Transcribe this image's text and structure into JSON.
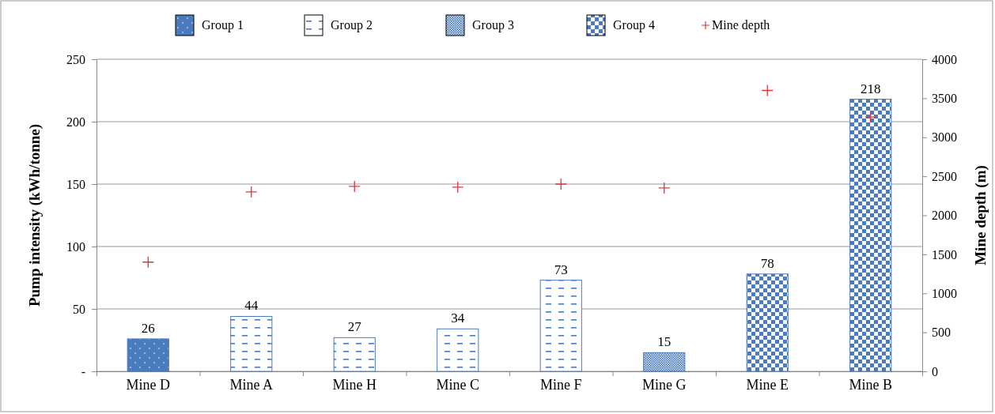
{
  "chart_data": {
    "type": "bar",
    "categories": [
      "Mine D",
      "Mine A",
      "Mine H",
      "Mine C",
      "Mine F",
      "Mine G",
      "Mine E",
      "Mine B"
    ],
    "ylabel": "Pump intensity (kWh/tonne)",
    "y2label": "Mine depth (m)",
    "ylim": [
      0,
      250
    ],
    "yticks": [
      {
        "value": 0,
        "label": "-"
      },
      50,
      100,
      150,
      200,
      250
    ],
    "y2lim": [
      0,
      4000
    ],
    "y2ticks": [
      0,
      500,
      1000,
      1500,
      2000,
      2500,
      3000,
      3500,
      4000
    ],
    "grid": "y",
    "legend": "top",
    "series": [
      {
        "name": "Group 1",
        "color": "#4a7bbf",
        "values": [
          26,
          null,
          null,
          null,
          null,
          null,
          null,
          null
        ],
        "value_labels": [
          "26",
          null,
          null,
          null,
          null,
          null,
          null,
          null
        ]
      },
      {
        "name": "Group 2",
        "color": "#4a7bbf",
        "values": [
          null,
          44,
          27,
          34,
          73,
          null,
          null,
          null
        ],
        "value_labels": [
          null,
          "44",
          "27",
          "34",
          "73",
          null,
          null,
          null
        ]
      },
      {
        "name": "Group 3",
        "color": "#4a7bbf",
        "values": [
          null,
          null,
          null,
          null,
          null,
          15,
          null,
          null
        ],
        "value_labels": [
          null,
          null,
          null,
          null,
          null,
          "15",
          null,
          null
        ]
      },
      {
        "name": "Group 4",
        "color": "#4a7bbf",
        "values": [
          null,
          null,
          null,
          null,
          null,
          null,
          78,
          218
        ],
        "value_labels": [
          null,
          null,
          null,
          null,
          null,
          null,
          "78",
          "218"
        ]
      },
      {
        "name": "Mine depth",
        "type": "scatter",
        "axis": "y2",
        "marker": "cross",
        "color": "#d9393c",
        "values": [
          1400,
          2300,
          2370,
          2360,
          2400,
          2350,
          3600,
          3260
        ]
      }
    ]
  }
}
